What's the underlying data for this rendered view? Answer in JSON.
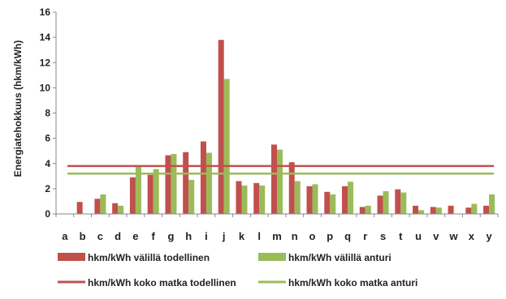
{
  "chart_data": {
    "type": "bar",
    "title": "",
    "xlabel": "",
    "ylabel": "Energiatehokkuus (hkm/kWh)",
    "ylim": [
      0,
      16
    ],
    "yticks": [
      0,
      2,
      4,
      6,
      8,
      10,
      12,
      14,
      16
    ],
    "grid": false,
    "legend_position": "bottom",
    "categories": [
      "a",
      "b",
      "c",
      "d",
      "e",
      "f",
      "g",
      "h",
      "i",
      "j",
      "k",
      "l",
      "m",
      "n",
      "o",
      "p",
      "q",
      "r",
      "s",
      "t",
      "u",
      "v",
      "w",
      "x",
      "y"
    ],
    "series": [
      {
        "name": "hkm/kWh välillä todellinen",
        "kind": "bar",
        "color": "#c0504d",
        "values": [
          0,
          0.95,
          1.2,
          0.85,
          2.9,
          3.1,
          4.65,
          4.9,
          5.75,
          13.8,
          2.6,
          2.45,
          5.5,
          4.1,
          2.2,
          1.75,
          2.2,
          0.55,
          1.45,
          1.95,
          0.65,
          0.55,
          0.65,
          0.5,
          0.65
        ]
      },
      {
        "name": "hkm/kWh välillä anturi",
        "kind": "bar",
        "color": "#9bbb59",
        "values": [
          0,
          0,
          1.55,
          0.65,
          3.75,
          3.55,
          4.75,
          2.7,
          4.85,
          10.7,
          2.25,
          2.25,
          5.1,
          2.6,
          2.35,
          1.55,
          2.55,
          0.65,
          1.8,
          1.7,
          0.3,
          0.5,
          0,
          0.8,
          1.55
        ]
      },
      {
        "name": "hkm/kWh koko matka todellinen",
        "kind": "line",
        "color": "#c0504d",
        "value": 3.8
      },
      {
        "name": "hkm/kWh koko matka anturi",
        "kind": "line",
        "color": "#9bbb59",
        "value": 3.2
      }
    ]
  }
}
